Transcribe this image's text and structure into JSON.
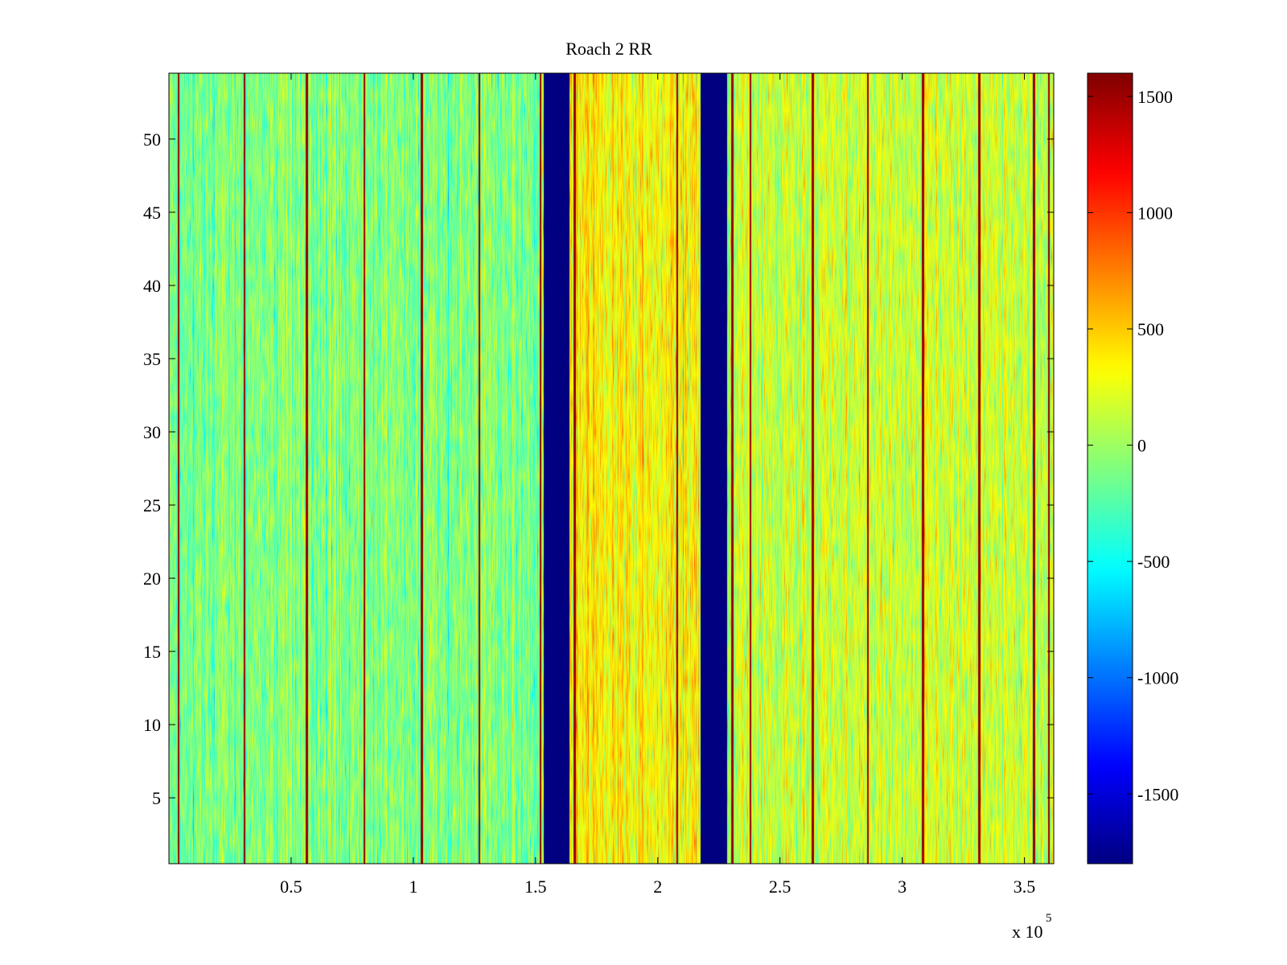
{
  "chart_data": {
    "type": "heatmap",
    "title": "Roach 2 RR",
    "xlabel": "",
    "ylabel": "",
    "x_exponent_label": "x 10",
    "x_exponent_power": "5",
    "xlim": [
      0,
      3.62
    ],
    "ylim": [
      0.5,
      54.5
    ],
    "x_ticks": [
      0.5,
      1,
      1.5,
      2,
      2.5,
      3,
      3.5
    ],
    "x_tick_labels": [
      "0.5",
      "1",
      "1.5",
      "2",
      "2.5",
      "3",
      "3.5"
    ],
    "y_ticks": [
      5,
      10,
      15,
      20,
      25,
      30,
      35,
      40,
      45,
      50
    ],
    "y_tick_labels": [
      "5",
      "10",
      "15",
      "20",
      "25",
      "30",
      "35",
      "40",
      "45",
      "50"
    ],
    "rows": 54,
    "colormap": "jet",
    "colorbar": {
      "clim": [
        -1800,
        1600
      ],
      "ticks": [
        1500,
        1000,
        500,
        0,
        -500,
        -1000,
        -1500
      ],
      "tick_labels": [
        "1500",
        "1000",
        "500",
        "0",
        "-500",
        "-1000",
        "-1500"
      ]
    },
    "background_level": {
      "left_region": -100,
      "middle_region": 350,
      "right_region": 150
    },
    "saturated_low_bands": [
      {
        "x_start": 1.535,
        "x_end": 1.64,
        "value": -1800
      },
      {
        "x_start": 2.175,
        "x_end": 2.285,
        "value": -1800
      }
    ],
    "high_spikes_x": [
      0.04,
      0.31,
      0.565,
      0.8,
      1.035,
      1.27,
      1.52,
      1.66,
      2.08,
      2.305,
      2.38,
      2.635,
      2.86,
      3.085,
      3.315,
      3.54,
      3.6
    ],
    "spike_value": 1600
  }
}
